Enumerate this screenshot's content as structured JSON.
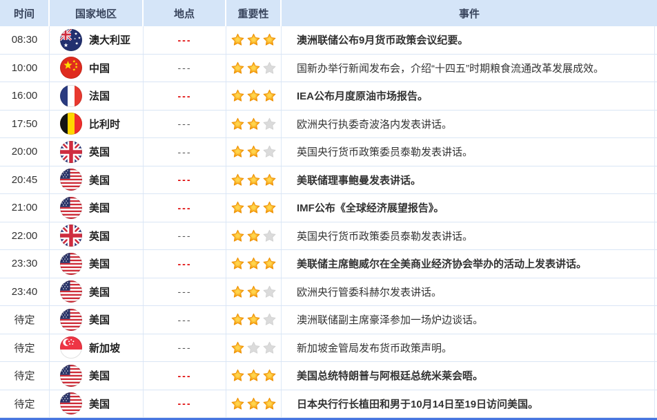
{
  "table": {
    "columns": [
      {
        "key": "time",
        "label": "时间"
      },
      {
        "key": "country",
        "label": "国家地区"
      },
      {
        "key": "location",
        "label": "地点"
      },
      {
        "key": "importance",
        "label": "重要性"
      },
      {
        "key": "event",
        "label": "事件"
      }
    ],
    "max_stars": 3,
    "rows": [
      {
        "time": "08:30",
        "flag": "australia",
        "country": "澳大利亚",
        "location": "---",
        "location_highlight": true,
        "stars": 3,
        "event": "澳洲联储公布9月货币政策会议纪要。",
        "event_highlight": true
      },
      {
        "time": "10:00",
        "flag": "china",
        "country": "中国",
        "location": "---",
        "location_highlight": false,
        "stars": 2,
        "event": "国新办举行新闻发布会，介绍“十四五”时期粮食流通改革发展成效。",
        "event_highlight": false
      },
      {
        "time": "16:00",
        "flag": "france",
        "country": "法国",
        "location": "---",
        "location_highlight": true,
        "stars": 3,
        "event": "IEA公布月度原油市场报告。",
        "event_highlight": true
      },
      {
        "time": "17:50",
        "flag": "belgium",
        "country": "比利时",
        "location": "---",
        "location_highlight": false,
        "stars": 2,
        "event": "欧洲央行执委奇波洛内发表讲话。",
        "event_highlight": false
      },
      {
        "time": "20:00",
        "flag": "uk",
        "country": "英国",
        "location": "---",
        "location_highlight": false,
        "stars": 2,
        "event": "英国央行货币政策委员泰勒发表讲话。",
        "event_highlight": false
      },
      {
        "time": "20:45",
        "flag": "usa",
        "country": "美国",
        "location": "---",
        "location_highlight": true,
        "stars": 3,
        "event": "美联储理事鲍曼发表讲话。",
        "event_highlight": true
      },
      {
        "time": "21:00",
        "flag": "usa",
        "country": "美国",
        "location": "---",
        "location_highlight": true,
        "stars": 3,
        "event": "IMF公布《全球经济展望报告》。",
        "event_highlight": true
      },
      {
        "time": "22:00",
        "flag": "uk",
        "country": "英国",
        "location": "---",
        "location_highlight": false,
        "stars": 2,
        "event": "英国央行货币政策委员泰勒发表讲话。",
        "event_highlight": false
      },
      {
        "time": "23:30",
        "flag": "usa",
        "country": "美国",
        "location": "---",
        "location_highlight": true,
        "stars": 3,
        "event": "美联储主席鲍威尔在全美商业经济协会举办的活动上发表讲话。",
        "event_highlight": true
      },
      {
        "time": "23:40",
        "flag": "usa",
        "country": "美国",
        "location": "---",
        "location_highlight": false,
        "stars": 2,
        "event": "欧洲央行管委科赫尔发表讲话。",
        "event_highlight": false
      },
      {
        "time": "待定",
        "flag": "usa",
        "country": "美国",
        "location": "---",
        "location_highlight": false,
        "stars": 2,
        "event": "澳洲联储副主席豪泽参加一场炉边谈话。",
        "event_highlight": false
      },
      {
        "time": "待定",
        "flag": "singapore",
        "country": "新加坡",
        "location": "---",
        "location_highlight": false,
        "stars": 1,
        "event": "新加坡金管局发布货币政策声明。",
        "event_highlight": false
      },
      {
        "time": "待定",
        "flag": "usa",
        "country": "美国",
        "location": "---",
        "location_highlight": true,
        "stars": 3,
        "event": "美国总统特朗普与阿根廷总统米莱会晤。",
        "event_highlight": true
      },
      {
        "time": "待定",
        "flag": "usa",
        "country": "美国",
        "location": "---",
        "location_highlight": true,
        "stars": 3,
        "event": "日本央行行长植田和男于10月14日至19日访问美国。",
        "event_highlight": true
      }
    ]
  },
  "icons": {
    "star_filled": "star-filled-icon",
    "star_empty": "star-empty-icon"
  },
  "colors": {
    "header_bg": "#D5E5F8",
    "header_text": "#38445C",
    "accent_red": "#DE0000",
    "body_text": "#333333",
    "muted_text": "#555555",
    "row_border": "#D9E5F5",
    "star_filled": "#F59300",
    "star_empty": "#DBDBDB",
    "bottom_bar": "#4674DF"
  }
}
